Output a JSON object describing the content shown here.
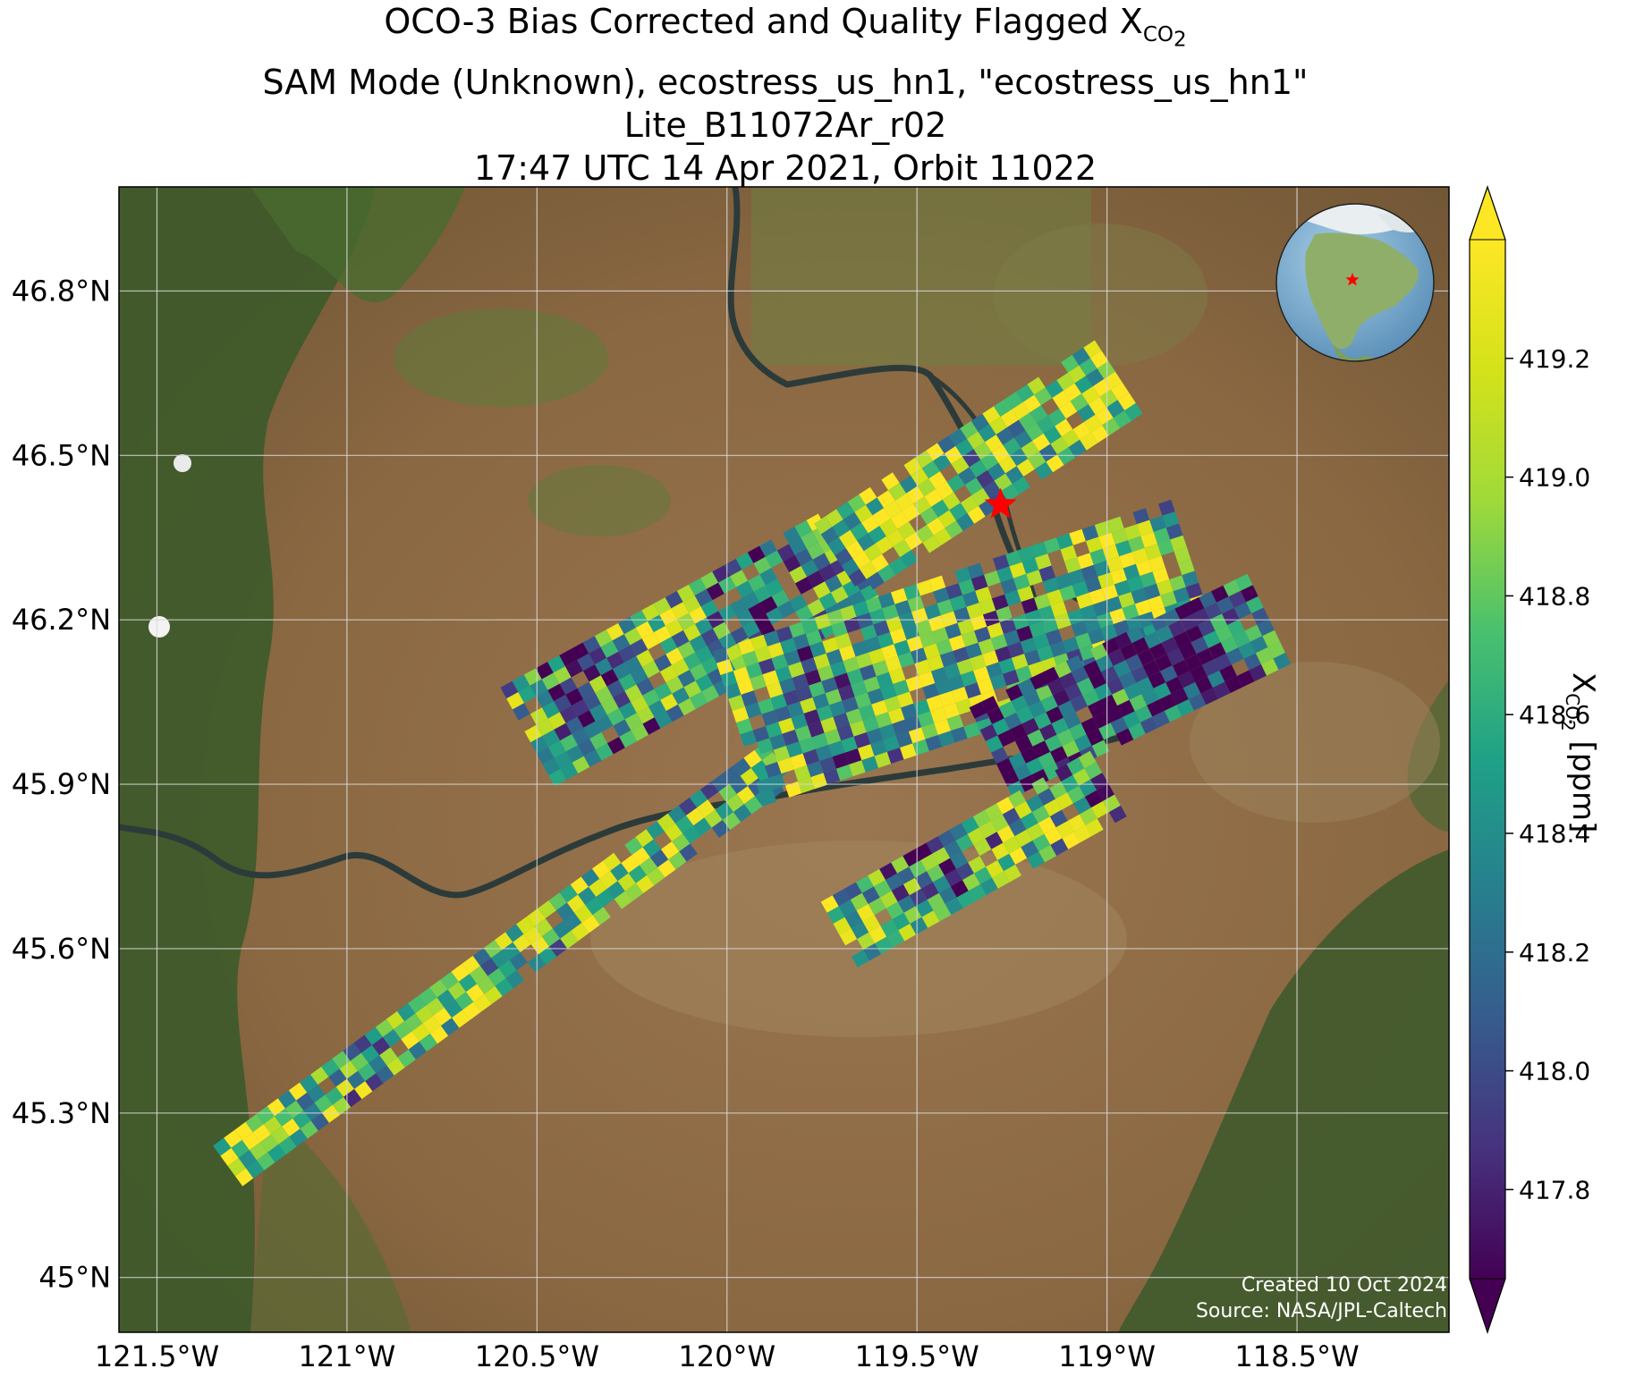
{
  "title": {
    "line1_prefix": "OCO-3 Bias Corrected and Quality Flagged X",
    "line1_sub": "CO",
    "line1_subsub": "2",
    "line2": "SAM Mode (Unknown), ecostress_us_hn1, \"ecostress_us_hn1\"",
    "line3": "Lite_B11072Ar_r02",
    "line4": "17:47 UTC 14 Apr 2021, Orbit 11022"
  },
  "map": {
    "projection": "PlateCarree",
    "extent": {
      "lon_min": -121.6,
      "lon_max": -118.1,
      "lat_min": 44.9,
      "lat_max": 46.99
    },
    "lon_ticks": [
      -121.5,
      -121.0,
      -120.5,
      -120.0,
      -119.5,
      -119.0,
      -118.5
    ],
    "lon_tick_labels": [
      "121.5°W",
      "121°W",
      "120.5°W",
      "120°W",
      "119.5°W",
      "119°W",
      "118.5°W"
    ],
    "lat_ticks": [
      45.0,
      45.3,
      45.6,
      45.9,
      46.2,
      46.5,
      46.8
    ],
    "lat_tick_labels": [
      "45°N",
      "45.3°N",
      "45.6°N",
      "45.9°N",
      "46.2°N",
      "46.5°N",
      "46.8°N"
    ],
    "grid": true,
    "background": "satellite imagery",
    "target_marker": {
      "lon": -119.28,
      "lat": 46.41,
      "symbol": "star",
      "color": "#ff0000"
    },
    "inset_globe": {
      "placement": "top-right",
      "marker": "red star over US Pacific Northwest"
    }
  },
  "chart_data": {
    "type": "heatmap",
    "variable": "XCO2",
    "colormap": "viridis",
    "colorbar": {
      "vmin": 417.65,
      "vmax": 419.4,
      "ticks": [
        417.8,
        418.0,
        418.2,
        418.4,
        418.6,
        418.8,
        419.0,
        419.2
      ],
      "tick_labels": [
        "417.8",
        "418.0",
        "418.2",
        "418.4",
        "418.6",
        "418.8",
        "419.0",
        "419.2"
      ],
      "label_prefix": "X",
      "label_sub": "CO",
      "label_subsub": "2",
      "label_suffix": " [ppm]",
      "extend": "both"
    },
    "swaths": [
      {
        "lon0": -121.31,
        "lat0": 45.2,
        "lon1": -119.83,
        "lat1": 45.95,
        "width": 0.1,
        "mean": 418.8,
        "pattern": 1
      },
      {
        "lon0": -120.52,
        "lat0": 45.98,
        "lon1": -119.65,
        "lat1": 46.31,
        "width": 0.22,
        "mean": 418.5,
        "pattern": 2
      },
      {
        "lon0": -119.7,
        "lat0": 46.3,
        "lon1": -118.95,
        "lat1": 46.64,
        "width": 0.18,
        "mean": 418.9,
        "pattern": 3
      },
      {
        "lon0": -119.97,
        "lat0": 46.0,
        "lon1": -118.75,
        "lat1": 46.28,
        "width": 0.3,
        "mean": 418.7,
        "pattern": 4
      },
      {
        "lon0": -119.3,
        "lat0": 45.95,
        "lon1": -118.55,
        "lat1": 46.2,
        "width": 0.2,
        "mean": 418.0,
        "pattern": 5
      },
      {
        "lon0": -119.7,
        "lat0": 45.62,
        "lon1": -118.98,
        "lat1": 45.9,
        "width": 0.15,
        "mean": 418.5,
        "pattern": 6
      }
    ]
  },
  "credits": {
    "created": "Created 10 Oct 2024",
    "source": "Source: NASA/JPL-Caltech"
  },
  "colors": {
    "land": "#8c6a45",
    "vegetation": "#3e5a2a",
    "river": "#2c3b3a",
    "grid": "#d8d8d8",
    "marker": "#ff0000",
    "ocean_globe": "#7fb2d6"
  }
}
